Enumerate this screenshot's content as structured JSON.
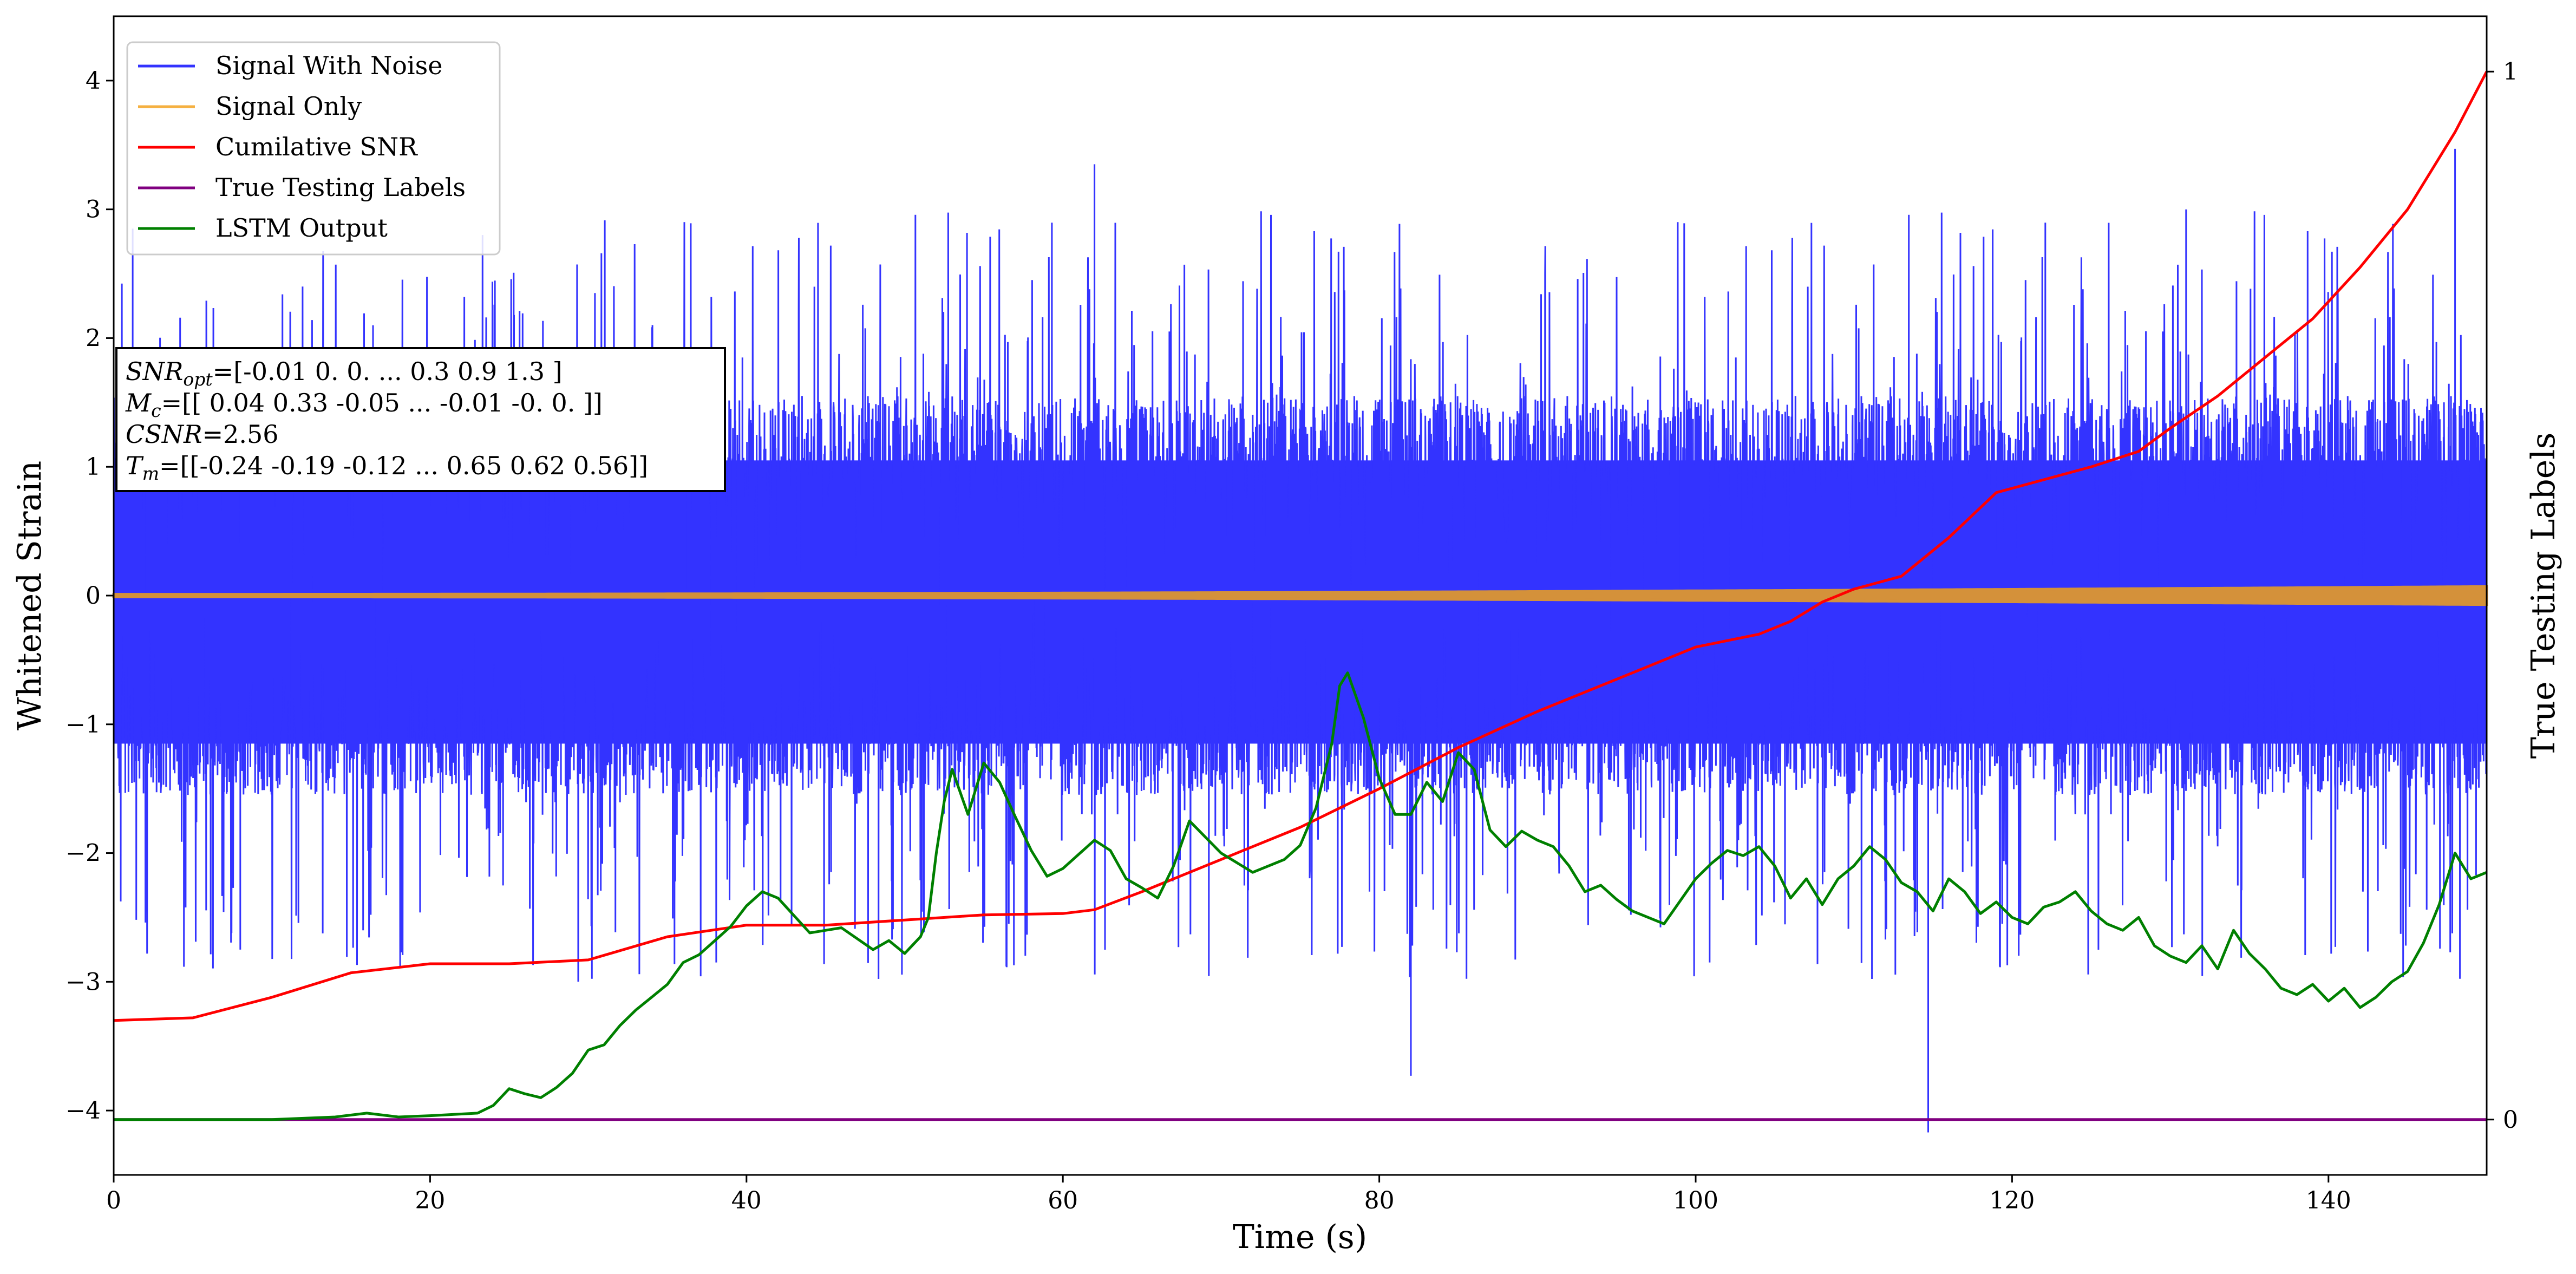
{
  "chart_data": {
    "type": "line",
    "xlabel": "Time (s)",
    "ylabel": "Whitened Strain",
    "ylabel_right": "True Testing Labels",
    "xlim": [
      0,
      150
    ],
    "ylim": [
      -4.5,
      4.5
    ],
    "ylim_right_ticks": [
      0,
      1
    ],
    "x_ticks": [
      0,
      20,
      40,
      60,
      80,
      100,
      120,
      140
    ],
    "y_ticks": [
      -4,
      -3,
      -2,
      -1,
      0,
      1,
      2,
      3,
      4
    ],
    "right_ticks": [
      0,
      1
    ],
    "right_axis_map": {
      "0": -4.07,
      "1": 4.07
    },
    "legend_position": "upper-left",
    "annotation_lines": [
      {
        "sym": "SNR",
        "sub": "opt",
        "rest": "=[-0.01  0.    0.   ...  0.3   0.9   1.3 ]"
      },
      {
        "sym": "M",
        "sub": "c",
        "rest": "=[[ 0.04  0.33 -0.05 ... -0.01 -0.    0.  ]]"
      },
      {
        "sym": "CSNR",
        "sub": "",
        "rest": "=2.56"
      },
      {
        "sym": "T",
        "sub": "m",
        "rest": "=[[-0.24 -0.19 -0.12 ...  0.65  0.62  0.56]]"
      }
    ],
    "series": [
      {
        "name": "Signal With Noise",
        "color": "#3333ff",
        "kind": "noise",
        "band": [
          -1.8,
          2.0
        ],
        "peak_max": 3.47,
        "peak_min": -4.17
      },
      {
        "name": "Signal Only",
        "color": "#f5b041",
        "overlay_color": "#d4913a",
        "kind": "chirp",
        "amplitude_start": 0.01,
        "amplitude_end": 0.07
      },
      {
        "name": "Cumilative SNR",
        "color": "#ff0000",
        "kind": "line",
        "x": [
          0,
          5,
          10,
          15,
          20,
          25,
          30,
          35,
          40,
          45,
          50,
          55,
          60,
          62,
          65,
          70,
          75,
          80,
          85,
          90,
          95,
          100,
          104,
          106,
          108,
          110,
          113,
          116,
          119,
          122,
          125,
          128,
          130,
          133,
          136,
          139,
          142,
          145,
          148,
          150
        ],
        "y": [
          -3.3,
          -3.28,
          -3.12,
          -2.93,
          -2.86,
          -2.86,
          -2.83,
          -2.65,
          -2.56,
          -2.56,
          -2.52,
          -2.48,
          -2.47,
          -2.44,
          -2.3,
          -2.05,
          -1.8,
          -1.5,
          -1.18,
          -0.9,
          -0.65,
          -0.4,
          -0.3,
          -0.2,
          -0.05,
          0.05,
          0.15,
          0.45,
          0.8,
          0.9,
          1.0,
          1.12,
          1.3,
          1.55,
          1.85,
          2.15,
          2.55,
          3.0,
          3.6,
          4.07
        ]
      },
      {
        "name": "True Testing Labels",
        "color": "#800080",
        "kind": "line",
        "x": [
          0,
          150
        ],
        "y": [
          -4.07,
          -4.07
        ]
      },
      {
        "name": "LSTM Output",
        "color": "#008000",
        "kind": "line",
        "x": [
          0,
          10,
          14,
          16,
          18,
          20,
          23,
          24,
          25,
          26,
          27,
          28,
          29,
          30,
          31,
          32,
          33,
          34,
          35,
          36,
          37,
          38,
          39,
          40,
          41,
          42,
          44,
          46,
          48,
          49,
          50,
          51,
          51.5,
          52,
          52.5,
          53,
          54,
          54.5,
          55,
          56,
          57,
          58,
          59,
          60,
          61,
          62,
          63,
          64,
          65,
          66,
          67,
          68,
          70,
          72,
          74,
          75,
          76,
          77,
          77.5,
          78,
          79,
          80,
          81,
          82,
          83,
          84,
          85,
          86,
          87,
          88,
          89,
          90,
          91,
          92,
          93,
          94,
          95,
          96,
          97,
          98,
          100,
          101,
          102,
          103,
          104,
          105,
          106,
          107,
          108,
          109,
          110,
          111,
          112,
          113,
          114,
          115,
          116,
          117,
          118,
          119,
          120,
          121,
          122,
          123,
          124,
          125,
          126,
          127,
          128,
          129,
          130,
          131,
          132,
          133,
          134,
          135,
          136,
          137,
          138,
          139,
          140,
          141,
          142,
          143,
          144,
          145,
          146,
          147,
          148,
          149,
          150
        ],
        "y": [
          -4.07,
          -4.07,
          -4.05,
          -4.02,
          -4.05,
          -4.04,
          -4.02,
          -3.96,
          -3.83,
          -3.87,
          -3.9,
          -3.82,
          -3.71,
          -3.53,
          -3.49,
          -3.34,
          -3.22,
          -3.12,
          -3.02,
          -2.85,
          -2.79,
          -2.68,
          -2.57,
          -2.41,
          -2.3,
          -2.35,
          -2.62,
          -2.58,
          -2.75,
          -2.68,
          -2.78,
          -2.65,
          -2.5,
          -2.0,
          -1.6,
          -1.35,
          -1.7,
          -1.5,
          -1.3,
          -1.45,
          -1.72,
          -1.98,
          -2.18,
          -2.12,
          -2.01,
          -1.9,
          -1.98,
          -2.2,
          -2.27,
          -2.35,
          -2.1,
          -1.75,
          -2.0,
          -2.15,
          -2.05,
          -1.94,
          -1.65,
          -1.15,
          -0.7,
          -0.6,
          -0.95,
          -1.42,
          -1.7,
          -1.7,
          -1.45,
          -1.6,
          -1.22,
          -1.35,
          -1.82,
          -1.95,
          -1.83,
          -1.9,
          -1.95,
          -2.1,
          -2.3,
          -2.25,
          -2.36,
          -2.45,
          -2.5,
          -2.55,
          -2.2,
          -2.08,
          -1.98,
          -2.02,
          -1.95,
          -2.1,
          -2.35,
          -2.2,
          -2.4,
          -2.2,
          -2.1,
          -1.95,
          -2.05,
          -2.23,
          -2.3,
          -2.45,
          -2.2,
          -2.3,
          -2.47,
          -2.38,
          -2.5,
          -2.55,
          -2.42,
          -2.38,
          -2.3,
          -2.45,
          -2.55,
          -2.6,
          -2.5,
          -2.72,
          -2.8,
          -2.85,
          -2.72,
          -2.9,
          -2.6,
          -2.78,
          -2.9,
          -3.05,
          -3.1,
          -3.02,
          -3.15,
          -3.05,
          -3.2,
          -3.12,
          -3.0,
          -2.92,
          -2.7,
          -2.4,
          -2.0,
          -2.2,
          -2.15
        ]
      }
    ]
  }
}
